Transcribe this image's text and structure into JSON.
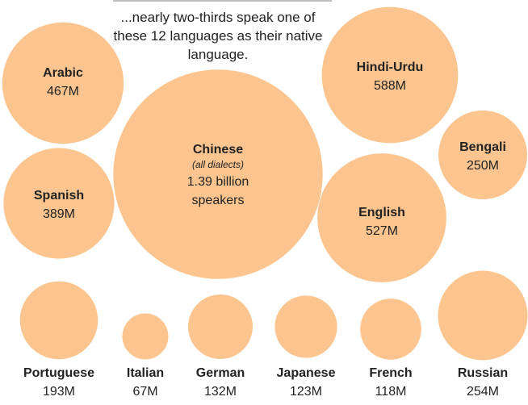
{
  "subtitle": "...nearly two-thirds speak one of these 12 languages as their native language.",
  "colors": {
    "bubble": "#fcc590",
    "text": "#222222"
  },
  "chart_data": {
    "type": "bubble",
    "series": [
      {
        "name": "Chinese",
        "note": "(all dialects)",
        "value_millions": 1390,
        "label": "1.39 billion speakers"
      },
      {
        "name": "Hindi-Urdu",
        "value_millions": 588,
        "label": "588M"
      },
      {
        "name": "English",
        "value_millions": 527,
        "label": "527M"
      },
      {
        "name": "Arabic",
        "value_millions": 467,
        "label": "467M"
      },
      {
        "name": "Spanish",
        "value_millions": 389,
        "label": "389M"
      },
      {
        "name": "Russian",
        "value_millions": 254,
        "label": "254M"
      },
      {
        "name": "Bengali",
        "value_millions": 250,
        "label": "250M"
      },
      {
        "name": "Portuguese",
        "value_millions": 193,
        "label": "193M"
      },
      {
        "name": "German",
        "value_millions": 132,
        "label": "132M"
      },
      {
        "name": "Japanese",
        "value_millions": 123,
        "label": "123M"
      },
      {
        "name": "French",
        "value_millions": 118,
        "label": "118M"
      },
      {
        "name": "Italian",
        "value_millions": 67,
        "label": "67M"
      }
    ]
  }
}
